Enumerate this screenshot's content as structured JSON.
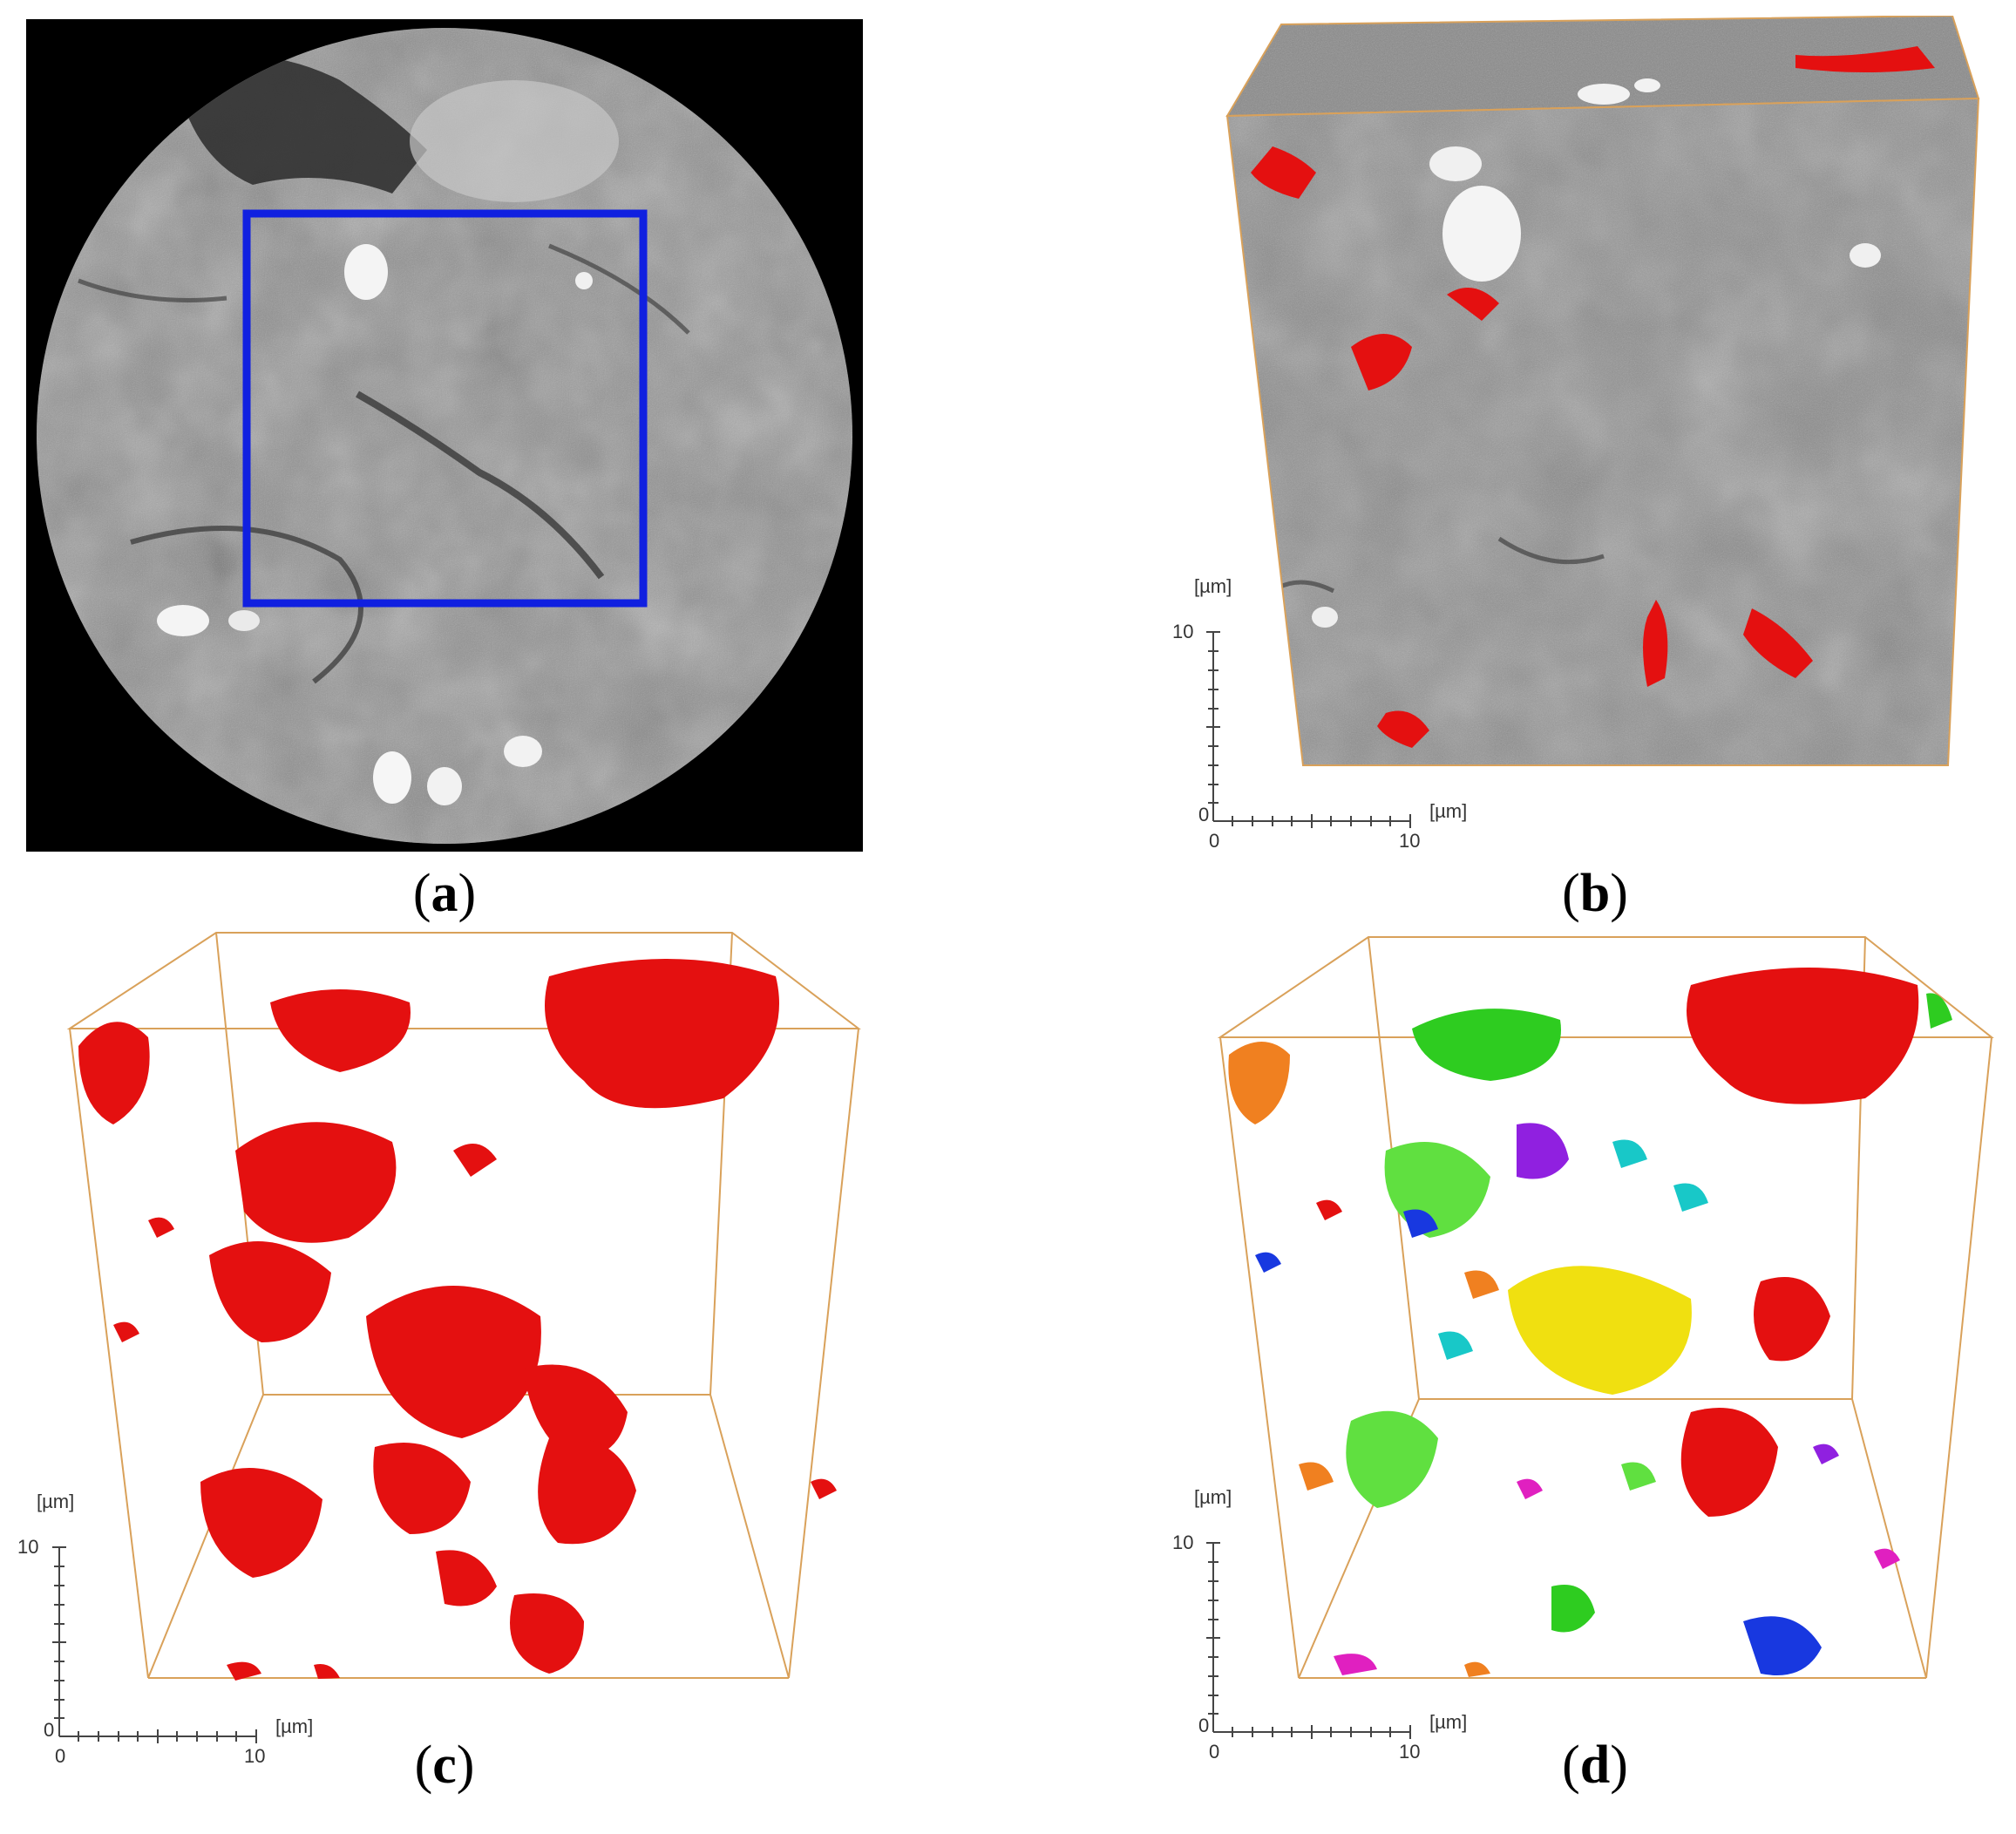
{
  "panels": [
    {
      "id": "a",
      "label": "a"
    },
    {
      "id": "b",
      "label": "b"
    },
    {
      "id": "c",
      "label": "c"
    },
    {
      "id": "d",
      "label": "d"
    }
  ],
  "axes": {
    "unit_label": "[µm]",
    "tick_zero": "0",
    "tick_max": "10"
  },
  "colors": {
    "outline_box": "#d9a15a",
    "roi_frame": "#1020e0",
    "segmented_pores": "#e41010",
    "palette": [
      "#e41010",
      "#2ecc20",
      "#f0e010",
      "#9020e0",
      "#1838e0",
      "#f08020",
      "#18c8c8",
      "#e020c0",
      "#60e040",
      "#ff6a00"
    ]
  }
}
